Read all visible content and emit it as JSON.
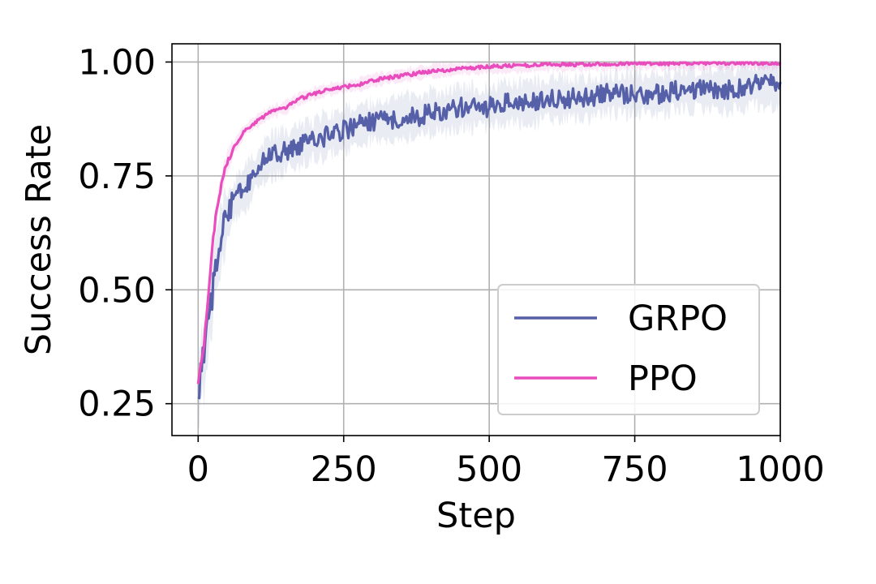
{
  "chart_data": {
    "type": "line",
    "xlabel": "Step",
    "ylabel": "Success Rate",
    "xlim": [
      -45,
      1000
    ],
    "ylim": [
      0.18,
      1.04
    ],
    "xticks": [
      0,
      250,
      500,
      750,
      1000
    ],
    "xtick_labels": [
      "0",
      "250",
      "500",
      "750",
      "1000"
    ],
    "yticks": [
      0.25,
      0.5,
      0.75,
      1.0
    ],
    "ytick_labels": [
      "0.25",
      "0.50",
      "0.75",
      "1.00"
    ],
    "grid": true,
    "legend_position": "lower-right",
    "series": [
      {
        "name": "GRPO",
        "color": "#5560a8",
        "x": [
          0,
          5,
          10,
          15,
          20,
          25,
          30,
          35,
          40,
          45,
          50,
          60,
          70,
          80,
          90,
          100,
          120,
          140,
          160,
          180,
          200,
          225,
          250,
          275,
          300,
          325,
          350,
          375,
          400,
          425,
          450,
          475,
          500,
          525,
          550,
          575,
          600,
          625,
          650,
          675,
          700,
          725,
          750,
          775,
          800,
          825,
          850,
          875,
          900,
          925,
          950,
          975,
          1000
        ],
        "values": [
          0.24,
          0.35,
          0.34,
          0.4,
          0.45,
          0.5,
          0.56,
          0.58,
          0.62,
          0.64,
          0.66,
          0.69,
          0.71,
          0.72,
          0.74,
          0.76,
          0.79,
          0.8,
          0.81,
          0.82,
          0.83,
          0.84,
          0.85,
          0.86,
          0.87,
          0.87,
          0.88,
          0.88,
          0.89,
          0.89,
          0.9,
          0.9,
          0.9,
          0.91,
          0.91,
          0.91,
          0.92,
          0.92,
          0.92,
          0.92,
          0.93,
          0.93,
          0.93,
          0.93,
          0.93,
          0.94,
          0.94,
          0.94,
          0.94,
          0.94,
          0.95,
          0.95,
          0.95
        ]
      },
      {
        "name": "PPO",
        "color": "#e94cbd",
        "x": [
          0,
          5,
          10,
          15,
          20,
          25,
          30,
          35,
          40,
          45,
          50,
          60,
          70,
          80,
          90,
          100,
          125,
          150,
          175,
          200,
          225,
          250,
          275,
          300,
          325,
          350,
          375,
          400,
          425,
          450,
          475,
          500,
          550,
          600,
          650,
          700,
          750,
          800,
          850,
          900,
          950,
          1000
        ],
        "values": [
          0.29,
          0.34,
          0.38,
          0.45,
          0.53,
          0.6,
          0.66,
          0.7,
          0.73,
          0.76,
          0.78,
          0.81,
          0.83,
          0.85,
          0.86,
          0.87,
          0.89,
          0.9,
          0.92,
          0.93,
          0.94,
          0.945,
          0.95,
          0.96,
          0.965,
          0.97,
          0.975,
          0.98,
          0.982,
          0.985,
          0.987,
          0.99,
          0.992,
          0.994,
          0.995,
          0.996,
          0.997,
          0.997,
          0.998,
          0.998,
          0.998,
          0.998
        ]
      }
    ]
  }
}
